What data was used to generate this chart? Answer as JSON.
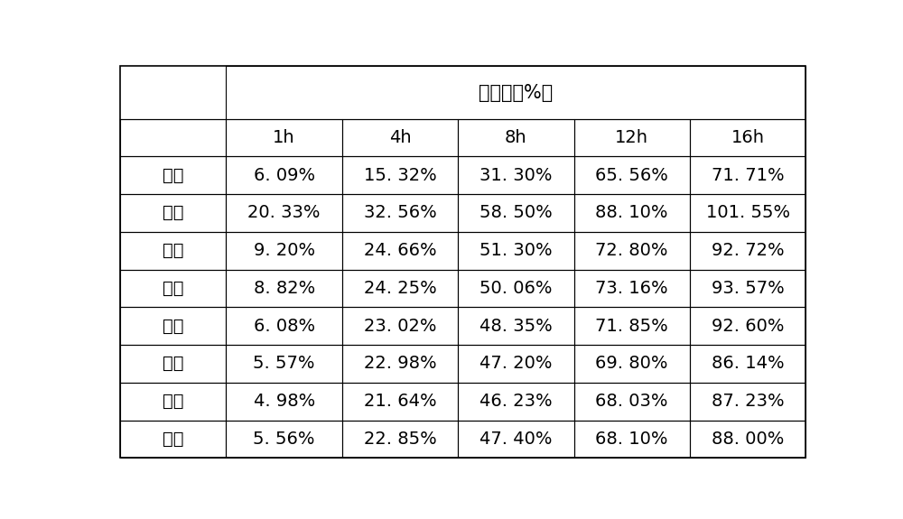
{
  "title": "释放度（%）",
  "col_headers": [
    "1h",
    "4h",
    "8h",
    "12h",
    "16h"
  ],
  "row_headers": [
    "例一",
    "例二",
    "例三",
    "例四",
    "例五",
    "例六",
    "例七",
    "例八"
  ],
  "table_data": [
    [
      "6. 09%",
      "15. 32%",
      "31. 30%",
      "65. 56%",
      "71. 71%"
    ],
    [
      "20. 33%",
      "32. 56%",
      "58. 50%",
      "88. 10%",
      "101. 55%"
    ],
    [
      "9. 20%",
      "24. 66%",
      "51. 30%",
      "72. 80%",
      "92. 72%"
    ],
    [
      "8. 82%",
      "24. 25%",
      "50. 06%",
      "73. 16%",
      "93. 57%"
    ],
    [
      "6. 08%",
      "23. 02%",
      "48. 35%",
      "71. 85%",
      "92. 60%"
    ],
    [
      "5. 57%",
      "22. 98%",
      "47. 20%",
      "69. 80%",
      "86. 14%"
    ],
    [
      "4. 98%",
      "21. 64%",
      "46. 23%",
      "68. 03%",
      "87. 23%"
    ],
    [
      "5. 56%",
      "22. 85%",
      "47. 40%",
      "68. 10%",
      "88. 00%"
    ]
  ],
  "bg_color": "#ffffff",
  "text_color": "#000000",
  "line_color": "#000000",
  "font_size": 14,
  "title_font_size": 15,
  "header_font_size": 14,
  "fig_width": 10.0,
  "fig_height": 5.75,
  "dpi": 100
}
